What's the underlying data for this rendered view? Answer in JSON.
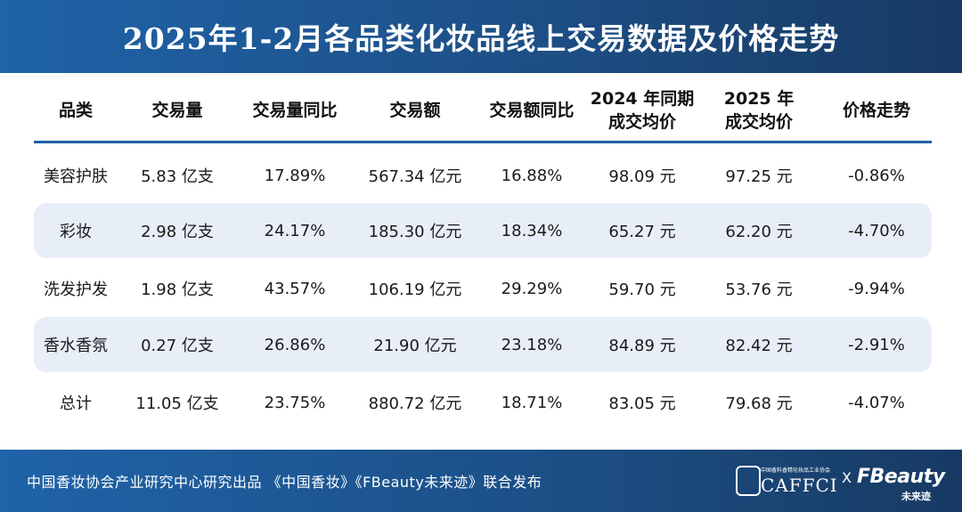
{
  "title": "2025年1-2月各品类化妆品线上交易数据及价格走势",
  "chart_data": {
    "type": "table",
    "columns": [
      [
        "品类"
      ],
      [
        "交易量"
      ],
      [
        "交易量同比"
      ],
      [
        "交易额"
      ],
      [
        "交易额同比"
      ],
      [
        "2024 年同期",
        "成交均价"
      ],
      [
        "2025 年",
        "成交均价"
      ],
      [
        "价格走势"
      ]
    ],
    "rows": [
      [
        "美容护肤",
        "5.83 亿支",
        "17.89%",
        "567.34 亿元",
        "16.88%",
        "98.09 元",
        "97.25 元",
        "-0.86%"
      ],
      [
        "彩妆",
        "2.98 亿支",
        "24.17%",
        "185.30 亿元",
        "18.34%",
        "65.27 元",
        "62.20 元",
        "-4.70%"
      ],
      [
        "洗发护发",
        "1.98 亿支",
        "43.57%",
        "106.19 亿元",
        "29.29%",
        "59.70 元",
        "53.76 元",
        "-9.94%"
      ],
      [
        "香水香氛",
        "0.27 亿支",
        "26.86%",
        "21.90 亿元",
        "23.18%",
        "84.89 元",
        "82.42 元",
        "-2.91%"
      ],
      [
        "总计",
        "11.05 亿支",
        "23.75%",
        "880.72 亿元",
        "18.71%",
        "83.05 元",
        "79.68 元",
        "-4.07%"
      ]
    ],
    "shaded_rows": [
      1,
      3
    ]
  },
  "footer": {
    "credit": "中国香妆协会产业研究中心研究出品  《中国香妆》《FBeauty未来迹》联合发布",
    "logo1_small": "中国香料香精化妆品工业协会",
    "logo1_name": "CAFFCI",
    "separator": "X",
    "logo2_name": "FBeauty",
    "logo2_sub": "未来迹"
  },
  "colors": {
    "header_bg": "#1f5fa3",
    "row_shade": "#e8eef8",
    "rule": "#1f5fa3"
  }
}
